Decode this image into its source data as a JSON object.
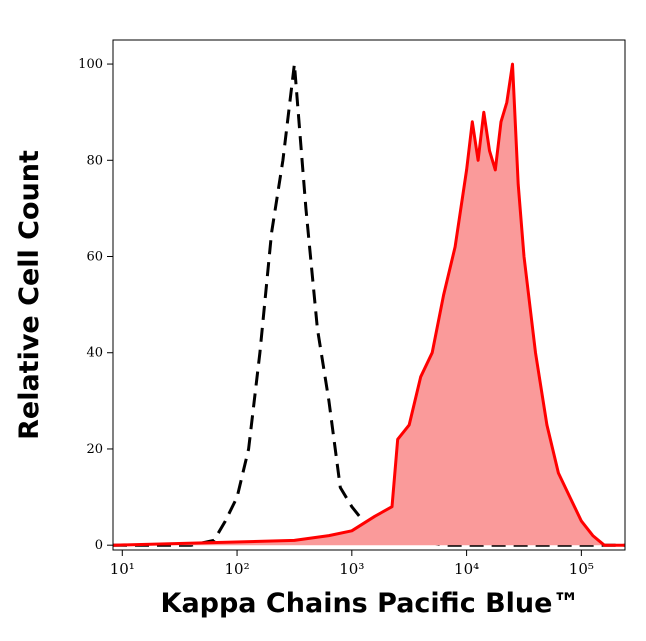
{
  "chart_data": {
    "type": "histogram-overlay",
    "x_label": "Kappa Chains Pacific Blue™",
    "y_label": "Relative Cell Count",
    "log_x": true,
    "xlim": [
      8.3,
      240000
    ],
    "ylim": [
      -1,
      105
    ],
    "xticks": [
      {
        "value": 10,
        "label": "10¹"
      },
      {
        "value": 100,
        "label": "10²"
      },
      {
        "value": 1000,
        "label": "10³"
      },
      {
        "value": 10000,
        "label": "10⁴"
      },
      {
        "value": 100000,
        "label": "10⁵"
      }
    ],
    "yticks": [
      0,
      20,
      40,
      60,
      80,
      100
    ],
    "series": [
      {
        "color": "#000000",
        "dashed": true,
        "fill": null,
        "x": [
          8.3,
          40,
          63,
          79,
          100,
          126,
          158,
          200,
          251,
          316,
          398,
          501,
          631,
          794,
          1000,
          1259,
          1585,
          2512,
          3981,
          6310,
          240000
        ],
        "values": [
          0,
          0,
          1,
          5,
          10,
          20,
          40,
          65,
          80,
          100,
          70,
          45,
          30,
          12,
          8,
          5,
          3,
          2,
          1,
          0,
          0
        ]
      },
      {
        "color": "#ff0000",
        "dashed": false,
        "fill": "#fa9a9a",
        "x": [
          8.3,
          316,
          631,
          1000,
          1585,
          2239,
          2512,
          3162,
          3981,
          5012,
          6310,
          7943,
          10000,
          11220,
          12589,
          14125,
          15849,
          17783,
          19953,
          22387,
          25119,
          28184,
          31623,
          39811,
          50119,
          63096,
          79433,
          100000,
          125893,
          158489,
          240000
        ],
        "values": [
          0,
          1,
          2,
          3,
          6,
          8,
          22,
          25,
          35,
          40,
          52,
          62,
          78,
          88,
          80,
          90,
          82,
          78,
          88,
          92,
          100,
          75,
          60,
          40,
          25,
          15,
          10,
          5,
          2,
          0,
          0
        ]
      }
    ]
  }
}
